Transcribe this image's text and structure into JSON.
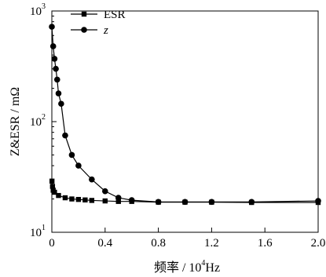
{
  "chart_data": {
    "type": "line",
    "title": "",
    "xlabel": "频率 / 10⁴Hz",
    "ylabel": "Z&ESR / mΩ",
    "xlim": [
      0,
      2.0
    ],
    "ylim": [
      10,
      1000
    ],
    "y_scale": "log",
    "grid": false,
    "legend_position": "top-left",
    "x_ticks": [
      {
        "value": 0,
        "label": "0"
      },
      {
        "value": 0.4,
        "label": "0.4"
      },
      {
        "value": 0.8,
        "label": "0.8"
      },
      {
        "value": 1.2,
        "label": "1.2"
      },
      {
        "value": 1.6,
        "label": "1.6"
      },
      {
        "value": 2.0,
        "label": "2.0"
      }
    ],
    "y_ticks": [
      {
        "value": 10,
        "base": "10",
        "exp": "1"
      },
      {
        "value": 100,
        "base": "10",
        "exp": "2"
      },
      {
        "value": 1000,
        "base": "10",
        "exp": "3"
      }
    ],
    "series": [
      {
        "name": "ESR",
        "marker": "square",
        "color": "#000000",
        "x": [
          0.001,
          0.005,
          0.01,
          0.02,
          0.05,
          0.1,
          0.15,
          0.2,
          0.25,
          0.3,
          0.4,
          0.5,
          0.6,
          0.8,
          1.0,
          1.2,
          1.5,
          2.0
        ],
        "y": [
          29,
          26,
          24,
          23,
          21.5,
          20.5,
          20,
          19.8,
          19.6,
          19.4,
          19.2,
          19,
          19,
          18.7,
          18.7,
          18.7,
          18.6,
          18.6
        ]
      },
      {
        "name": "z",
        "marker": "circle",
        "color": "#000000",
        "x": [
          0.0,
          0.01,
          0.02,
          0.03,
          0.04,
          0.05,
          0.07,
          0.1,
          0.15,
          0.2,
          0.3,
          0.4,
          0.5,
          0.6,
          0.8,
          1.0,
          1.2,
          1.5,
          2.0
        ],
        "y": [
          720,
          480,
          370,
          300,
          240,
          180,
          145,
          75,
          50,
          40,
          30,
          23.5,
          20.5,
          19.5,
          18.8,
          18.8,
          18.8,
          18.8,
          19.2
        ]
      }
    ]
  }
}
